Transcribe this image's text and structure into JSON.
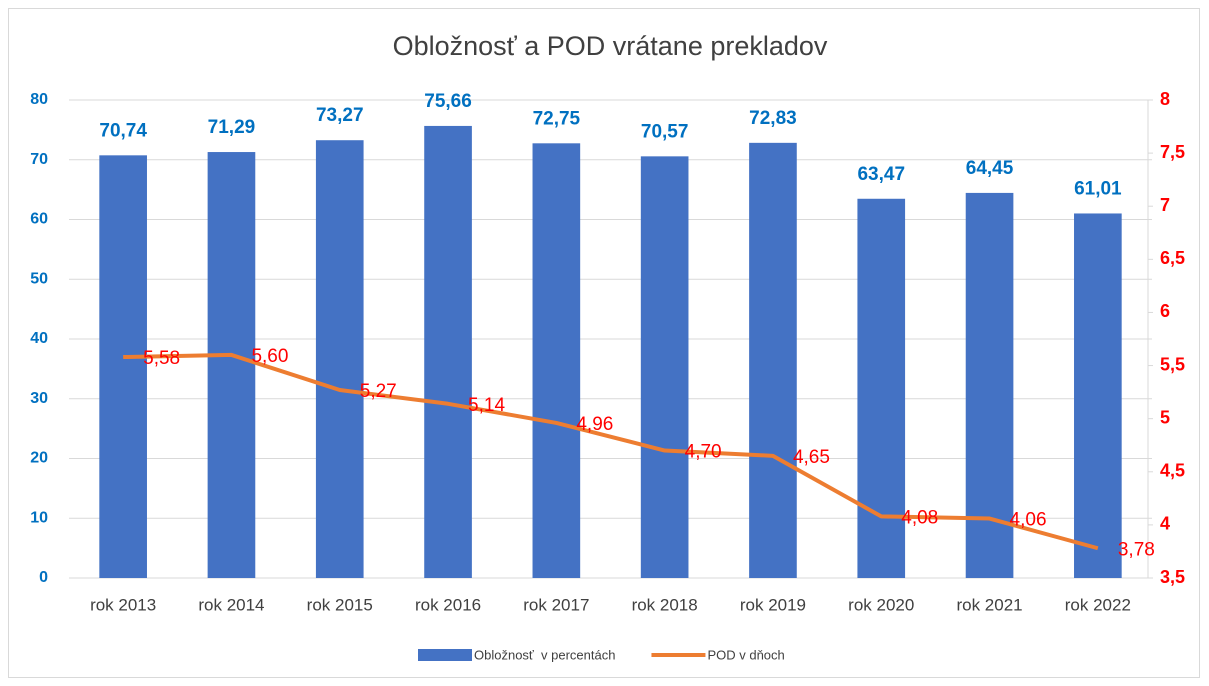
{
  "chart_data": {
    "type": "bar-line",
    "title": "Obložnosť a POD vrátane prekladov",
    "categories": [
      "rok 2013",
      "rok 2014",
      "rok 2015",
      "rok 2016",
      "rok 2017",
      "rok 2018",
      "rok 2019",
      "rok 2020",
      "rok 2021",
      "rok 2022"
    ],
    "series": [
      {
        "name": "Obložnosť  v percentách",
        "color": "#4472c4",
        "type": "bar",
        "values": [
          70.74,
          71.29,
          73.27,
          75.66,
          72.75,
          70.57,
          72.83,
          63.47,
          64.45,
          61.01
        ],
        "value_labels": [
          "70,74",
          "71,29",
          "73,27",
          "75,66",
          "72,75",
          "70,57",
          "72,83",
          "63,47",
          "64,45",
          "61,01"
        ]
      },
      {
        "name": "POD v dňoch",
        "color": "#ed7d31",
        "type": "line",
        "axis": "y2",
        "values": [
          5.58,
          5.6,
          5.27,
          5.14,
          4.96,
          4.7,
          4.65,
          4.08,
          4.06,
          3.78
        ],
        "value_labels": [
          "5,58",
          "5,60",
          "5,27",
          "5,14",
          "4,96",
          "4,70",
          "4,65",
          "4,08",
          "4,06",
          "3,78"
        ]
      }
    ],
    "ylim": [
      0,
      80
    ],
    "yticks": [
      0,
      10,
      20,
      30,
      40,
      50,
      60,
      70,
      80
    ],
    "y2lim": [
      3.5,
      8
    ],
    "y2ticks": [
      {
        "value": 3.5,
        "label": "3,5"
      },
      4,
      {
        "value": 4.5,
        "label": "4,5"
      },
      5,
      {
        "value": 5.5,
        "label": "5,5"
      },
      6,
      {
        "value": 6.5,
        "label": "6,5"
      },
      7,
      {
        "value": 7.5,
        "label": "7,5"
      },
      8
    ],
    "grid": true,
    "legend": "bottom"
  }
}
